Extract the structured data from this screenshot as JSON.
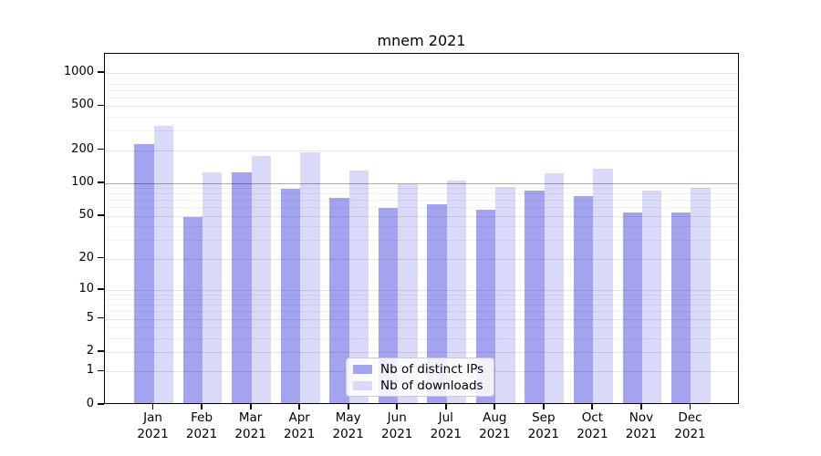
{
  "title": "mnem 2021",
  "legend": {
    "items": [
      {
        "label": "Nb of distinct IPs",
        "color": "#a3a3f0"
      },
      {
        "label": "Nb of downloads",
        "color": "#d9d9f8"
      }
    ]
  },
  "chart_data": {
    "type": "bar",
    "title": "mnem 2021",
    "categories": [
      "Jan 2021",
      "Feb 2021",
      "Mar 2021",
      "Apr 2021",
      "May 2021",
      "Jun 2021",
      "Jul 2021",
      "Aug 2021",
      "Sep 2021",
      "Oct 2021",
      "Nov 2021",
      "Dec 2021"
    ],
    "series": [
      {
        "name": "Nb of distinct IPs",
        "color": "#a3a3f0",
        "values": [
          220,
          47,
          120,
          85,
          70,
          57,
          62,
          55,
          83,
          73,
          52,
          52
        ]
      },
      {
        "name": "Nb of downloads",
        "color": "#d9d9f8",
        "values": [
          320,
          120,
          170,
          183,
          125,
          95,
          101,
          89,
          118,
          130,
          83,
          87
        ]
      }
    ],
    "yscale": "symlog (position proportional to log1p of value)",
    "ylim": [
      0,
      1500
    ],
    "y_ticks": [
      0,
      1,
      2,
      5,
      10,
      20,
      50,
      100,
      200,
      500,
      1000
    ],
    "y_minor_gridlines": [
      3,
      4,
      6,
      7,
      8,
      9,
      30,
      40,
      60,
      70,
      80,
      90,
      300,
      400,
      600,
      700,
      800,
      900
    ],
    "emphasized_gridline": 100,
    "grid": "horizontal, major and minor",
    "legend_position": "lower center",
    "xlabel": "",
    "ylabel": ""
  },
  "colors": {
    "bar_dark": "#a3a3f0",
    "bar_light": "#d9d9f8",
    "grid_major": "rgba(0,0,0,0.10)",
    "grid_minor": "rgba(0,0,0,0.05)",
    "grid_emphasis": "rgba(0,0,0,0.33)",
    "axis": "#000000"
  }
}
